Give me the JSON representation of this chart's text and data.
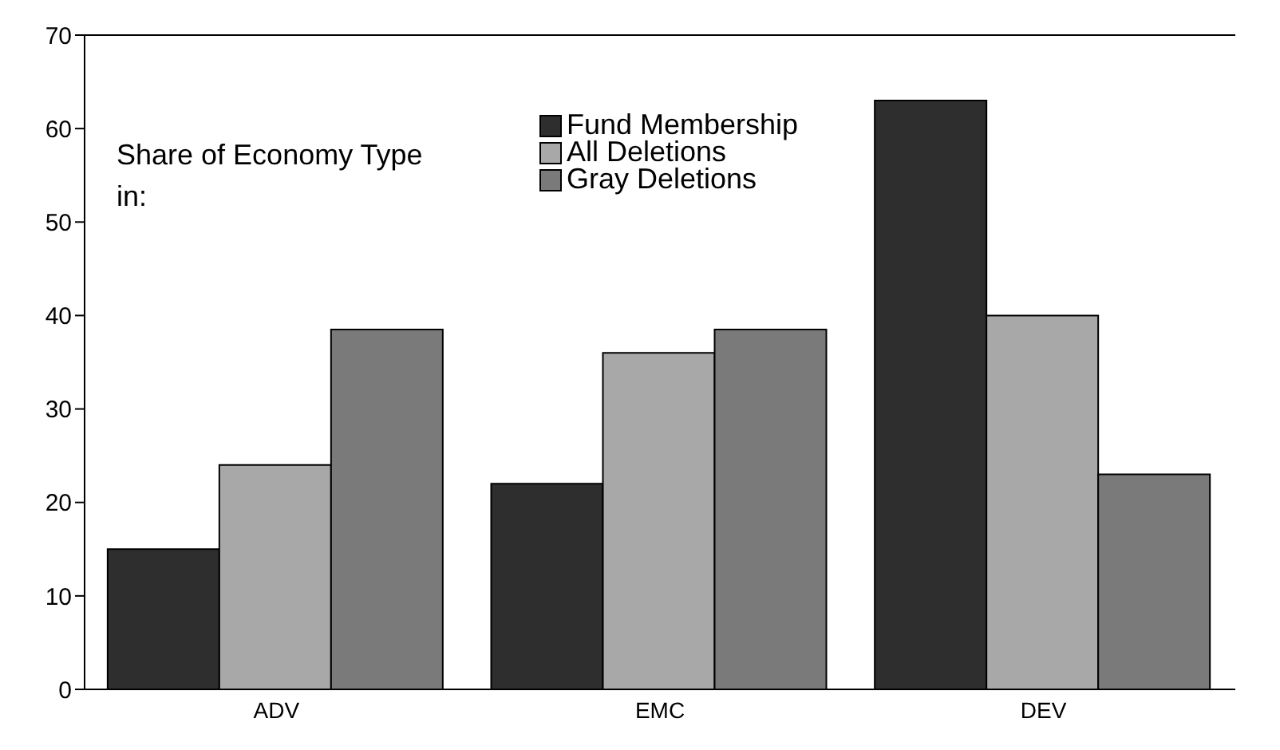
{
  "chart_data": {
    "type": "bar",
    "categories": [
      "ADV",
      "EMC",
      "DEV"
    ],
    "series": [
      {
        "name": "Fund Membership",
        "color": "#2e2e2e",
        "values": [
          15,
          22,
          63
        ]
      },
      {
        "name": "All Deletions",
        "color": "#a8a8a8",
        "values": [
          24,
          36,
          40
        ]
      },
      {
        "name": "Gray Deletions",
        "color": "#7a7a7a",
        "values": [
          38.5,
          38.5,
          23
        ]
      }
    ],
    "ylim": [
      0,
      70
    ],
    "yticks": [
      0,
      10,
      20,
      30,
      40,
      50,
      60,
      70
    ],
    "legend": "top",
    "annotations": [
      "Share of Economy Type in:"
    ]
  }
}
